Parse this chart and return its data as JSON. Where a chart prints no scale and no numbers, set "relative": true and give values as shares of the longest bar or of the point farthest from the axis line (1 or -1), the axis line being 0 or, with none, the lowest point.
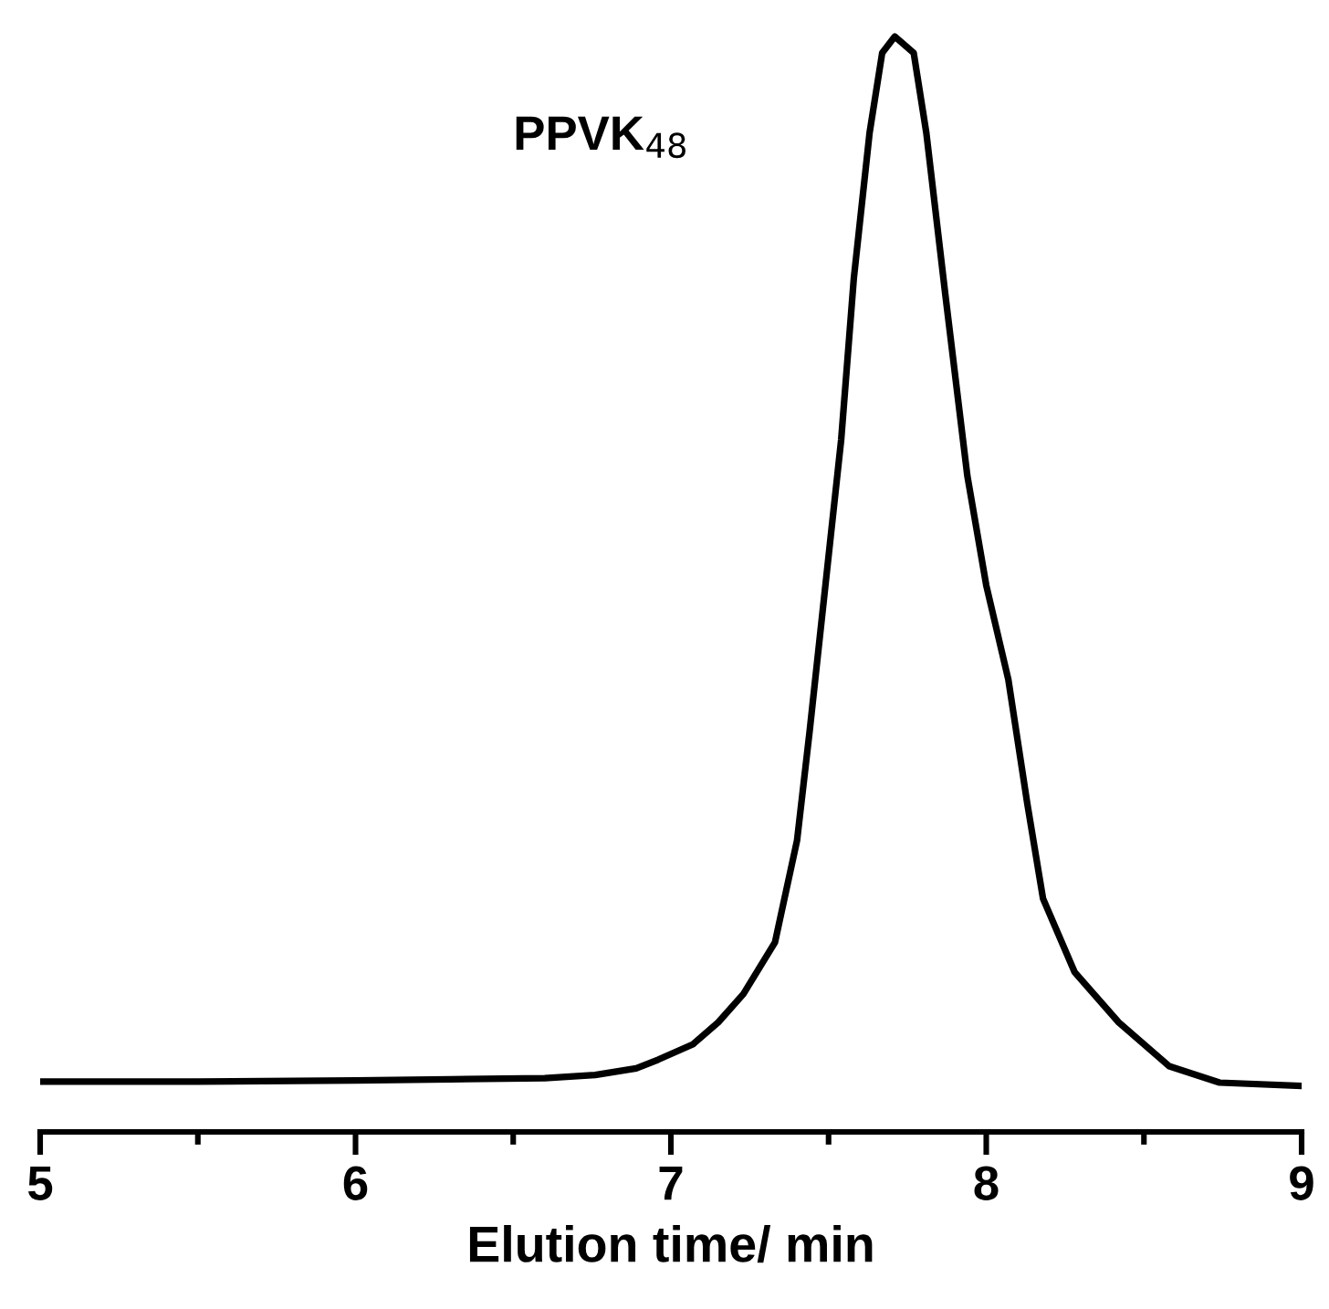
{
  "chart_data": {
    "type": "line",
    "relative": true,
    "xlabel": "Elution time/ min",
    "xlim": [
      5,
      9
    ],
    "xticks": [
      5,
      {
        "value": 5.5,
        "label": null
      },
      6,
      {
        "value": 6.5,
        "label": null
      },
      7,
      {
        "value": 7.5,
        "label": null
      },
      8,
      {
        "value": 8.5,
        "label": null
      },
      9
    ],
    "annotations": [
      "PPVK$_{48}$"
    ],
    "series": [
      {
        "color": "#000000",
        "x": [
          5.0,
          5.5,
          6.0,
          6.3,
          6.6,
          6.76,
          6.89,
          6.96,
          7.07,
          7.15,
          7.23,
          7.33,
          7.4,
          7.44,
          7.49,
          7.54,
          7.58,
          7.63,
          7.67,
          7.71,
          7.77,
          7.81,
          7.87,
          7.94,
          8.0,
          8.07,
          8.13,
          8.18,
          8.28,
          8.42,
          8.58,
          8.74,
          9.0
        ],
        "values": [
          0.046,
          0.046,
          0.047,
          0.048,
          0.049,
          0.052,
          0.058,
          0.066,
          0.08,
          0.1,
          0.126,
          0.173,
          0.266,
          0.366,
          0.499,
          0.632,
          0.779,
          0.912,
          0.985,
          1.0,
          0.985,
          0.912,
          0.765,
          0.599,
          0.499,
          0.413,
          0.3,
          0.213,
          0.146,
          0.1,
          0.06,
          0.045,
          0.042
        ]
      }
    ],
    "grid": false,
    "legend": false
  }
}
